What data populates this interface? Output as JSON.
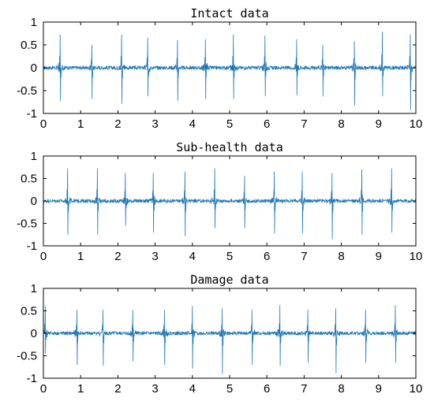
{
  "chart_data": [
    {
      "type": "line",
      "title": "Intact data",
      "xlabel": "",
      "ylabel": "",
      "xlim": [
        0,
        10
      ],
      "ylim": [
        -1,
        1
      ],
      "xticks": [
        0,
        1,
        2,
        3,
        4,
        5,
        6,
        7,
        8,
        9,
        10
      ],
      "yticks": [
        1,
        0.5,
        0,
        -0.5,
        -1
      ],
      "grid": false,
      "color": "#1f77b4",
      "spikes_x": [
        0.45,
        1.3,
        2.1,
        2.8,
        3.6,
        4.35,
        5.1,
        5.95,
        6.8,
        7.5,
        8.35,
        9.1,
        9.85
      ],
      "spikes_max": [
        0.72,
        0.5,
        0.72,
        0.65,
        0.6,
        0.62,
        0.72,
        0.7,
        0.62,
        0.5,
        0.58,
        0.78,
        0.72
      ],
      "spikes_min": [
        -0.72,
        -0.68,
        -0.78,
        -0.62,
        -0.72,
        -0.68,
        -0.68,
        -0.62,
        -0.6,
        -0.62,
        -0.82,
        -0.62,
        -0.92
      ],
      "baseline_amp": 0.1
    },
    {
      "type": "line",
      "title": "Sub-health data",
      "xlabel": "",
      "ylabel": "",
      "xlim": [
        0,
        10
      ],
      "ylim": [
        -1,
        1
      ],
      "xticks": [
        0,
        1,
        2,
        3,
        4,
        5,
        6,
        7,
        8,
        9,
        10
      ],
      "yticks": [
        1,
        0.5,
        0,
        -0.5,
        -1
      ],
      "grid": false,
      "color": "#1f77b4",
      "spikes_x": [
        0.65,
        1.45,
        2.2,
        2.95,
        3.8,
        4.6,
        5.4,
        6.2,
        6.95,
        7.75,
        8.55,
        9.35
      ],
      "spikes_max": [
        0.72,
        0.72,
        0.62,
        0.62,
        0.65,
        0.72,
        0.55,
        0.65,
        0.65,
        0.62,
        0.7,
        0.72
      ],
      "spikes_min": [
        -0.75,
        -0.75,
        -0.55,
        -0.7,
        -0.78,
        -0.6,
        -0.6,
        -0.72,
        -0.72,
        -0.85,
        -0.75,
        -0.7
      ],
      "baseline_amp": 0.1
    },
    {
      "type": "line",
      "title": "Damage data",
      "xlabel": "",
      "ylabel": "",
      "xlim": [
        0,
        10
      ],
      "ylim": [
        -1,
        1
      ],
      "xticks": [
        0,
        1,
        2,
        3,
        4,
        5,
        6,
        7,
        8,
        9,
        10
      ],
      "yticks": [
        1,
        0.5,
        0,
        -0.5,
        -1
      ],
      "grid": false,
      "color": "#1f77b4",
      "spikes_x": [
        0.05,
        0.9,
        1.6,
        2.4,
        3.25,
        4.0,
        4.8,
        5.6,
        6.35,
        7.1,
        7.85,
        8.65,
        9.45
      ],
      "spikes_max": [
        0.6,
        0.52,
        0.52,
        0.52,
        0.52,
        0.6,
        0.55,
        0.52,
        0.62,
        0.52,
        0.55,
        0.52,
        0.62
      ],
      "spikes_min": [
        -0.45,
        -0.7,
        -0.72,
        -0.62,
        -0.7,
        -0.78,
        -0.9,
        -0.7,
        -0.72,
        -0.65,
        -0.88,
        -0.65,
        -0.65
      ],
      "baseline_amp": 0.1
    }
  ]
}
